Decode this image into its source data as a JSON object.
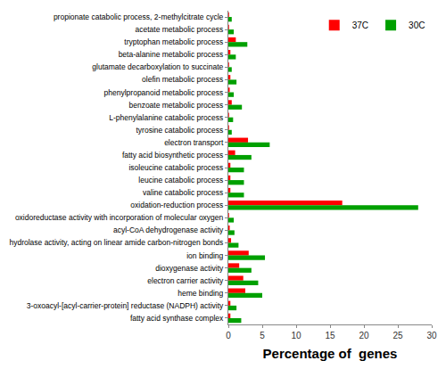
{
  "chart_data": {
    "type": "bar",
    "orientation": "horizontal",
    "x_label": "Percentage of  genes",
    "categories": [
      "propionate catabolic process, 2-methylcitrate cycle",
      "acetate metabolic process",
      "tryptophan metabolic process",
      "beta-alanine metabolic process",
      "glutamate decarboxylation to succinate",
      "olefin metabolic process",
      "phenylpropanoid metabolic process",
      "benzoate metabolic process",
      "L-phenylalanine catabolic process",
      "tyrosine catabolic process",
      "electron transport",
      "fatty acid biosynthetic process",
      "isoleucine catabolic process",
      "leucine catabolic process",
      "valine catabolic process",
      "oxidation-reduction process",
      "oxidoreductase activity with incorporation of molecular oxygen",
      "acyl-CoA dehydrogenase activity",
      "hydrolase activity, acting on linear amide carbon-nitrogen bonds",
      "ion binding",
      "dioxygenase activity",
      "electron carrier activity",
      "heme binding",
      "3-oxoacyl-[acyl-carrier-protein] reductase (NADPH) activity",
      "fatty acid synthase complex"
    ],
    "series": [
      {
        "name": "37C",
        "color": "#ff0000",
        "values": [
          0.1,
          0.1,
          1.1,
          0.3,
          0.1,
          0.3,
          0.2,
          0.5,
          0.1,
          0.1,
          2.9,
          1.0,
          0.3,
          0.3,
          0.3,
          16.8,
          0.1,
          0.2,
          0.4,
          3.0,
          1.6,
          2.2,
          2.5,
          0.3,
          0.3
        ]
      },
      {
        "name": "30C",
        "color": "#00a000",
        "values": [
          0.5,
          0.8,
          2.8,
          1.1,
          0.5,
          1.2,
          0.8,
          2.0,
          0.7,
          0.5,
          6.1,
          3.4,
          2.3,
          2.3,
          2.3,
          28.0,
          0.8,
          0.9,
          1.5,
          5.4,
          3.4,
          4.4,
          5.0,
          1.2,
          1.9
        ]
      }
    ],
    "xlim": [
      0,
      30
    ],
    "xticks": [
      0,
      5,
      10,
      15,
      20,
      25,
      30
    ],
    "grid": false,
    "legend": "top right"
  }
}
